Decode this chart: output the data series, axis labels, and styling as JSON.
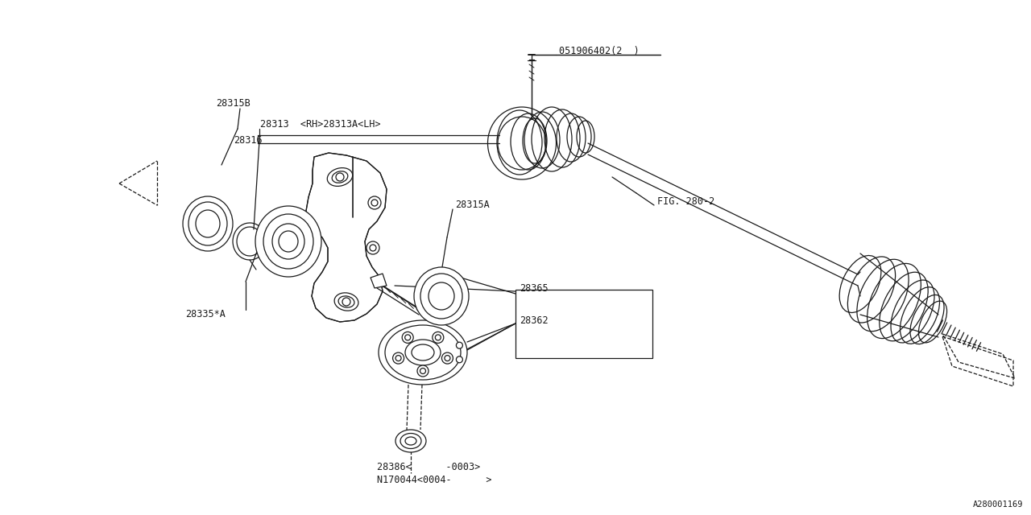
{
  "bg_color": "#ffffff",
  "line_color": "#1a1a1a",
  "fig_width": 12.8,
  "fig_height": 6.4,
  "watermark": "A280001169",
  "label_051906402": "051906402(2  )",
  "label_28315B": "28315B",
  "label_28313": "28313  <RH>28313A<LH>",
  "label_28316": "28316",
  "label_28315A": "28315A",
  "label_28335A": "28335*A",
  "label_FIG280": "FIG. 280-2",
  "label_28365": "28365",
  "label_28362": "28362",
  "label_28386": "28386<      -0003>",
  "label_N170044": "N170044<0004-      >"
}
